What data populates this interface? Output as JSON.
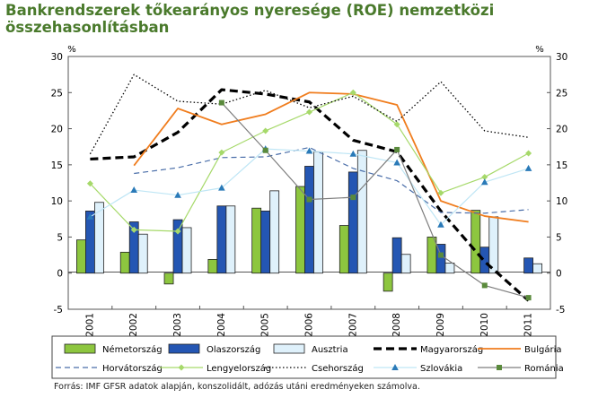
{
  "chart_data": {
    "type": "bar",
    "title": "Bankrendszerek tőkearányos nyeresége (ROE) nemzetközi összehasonlításban",
    "ylabel_left": "%",
    "ylabel_right": "%",
    "ylim": [
      -5,
      30
    ],
    "yticks": [
      "30",
      "25",
      "20",
      "15",
      "10",
      "5",
      "0",
      "-5"
    ],
    "grid": false,
    "legend_position": "bottom",
    "categories": [
      "2001",
      "2002",
      "2003",
      "2004",
      "2005",
      "2006",
      "2007",
      "2008",
      "2009",
      "2010",
      "2011"
    ],
    "series": [
      {
        "name": "Németország",
        "type": "bar",
        "color": "#8dc63f",
        "values": [
          4.6,
          2.9,
          -1.5,
          1.9,
          9.0,
          12.0,
          6.6,
          -2.5,
          5.0,
          8.7,
          null
        ]
      },
      {
        "name": "Olaszország",
        "type": "bar",
        "color": "#2456b3",
        "values": [
          8.6,
          7.1,
          7.4,
          9.3,
          8.6,
          14.8,
          14.0,
          4.9,
          4.0,
          3.6,
          2.1
        ]
      },
      {
        "name": "Ausztria",
        "type": "bar",
        "color": "#dff1fb",
        "values": [
          9.8,
          5.4,
          6.3,
          9.3,
          11.4,
          16.8,
          17.0,
          2.6,
          1.4,
          7.8,
          1.3
        ]
      },
      {
        "name": "Magyarország",
        "type": "line",
        "style": "thick-dashed",
        "color": "#000000",
        "values": [
          15.8,
          16.1,
          19.5,
          25.4,
          24.8,
          23.7,
          18.4,
          16.8,
          8.6,
          1.6,
          -3.8
        ]
      },
      {
        "name": "Bulgária",
        "type": "line",
        "style": "solid",
        "color": "#f07d1e",
        "values": [
          null,
          14.9,
          22.8,
          20.6,
          22.0,
          25.0,
          24.8,
          23.3,
          10.0,
          7.9,
          7.1
        ]
      },
      {
        "name": "Horvátország",
        "type": "line",
        "style": "dashed",
        "color": "#4a6ea9",
        "values": [
          null,
          13.8,
          14.6,
          16.0,
          16.1,
          17.4,
          14.5,
          12.8,
          8.4,
          8.3,
          8.8
        ]
      },
      {
        "name": "Lengyelország",
        "type": "line",
        "style": "solid-diamond",
        "color": "#a6d96a",
        "values": [
          12.4,
          6.0,
          5.8,
          16.7,
          19.7,
          22.3,
          25.0,
          20.6,
          11.1,
          13.3,
          16.6
        ]
      },
      {
        "name": "Csehország",
        "type": "line",
        "style": "dotted",
        "color": "#000000",
        "values": [
          16.5,
          27.5,
          23.8,
          23.4,
          25.3,
          22.9,
          24.5,
          21.0,
          26.5,
          19.7,
          18.8
        ]
      },
      {
        "name": "Szlovákia",
        "type": "line",
        "style": "solid-triangle",
        "color": "#bfe6f5",
        "marker_color": "#2a7ab8",
        "values": [
          7.8,
          11.5,
          10.8,
          11.8,
          17.2,
          16.9,
          16.5,
          15.3,
          6.7,
          12.6,
          14.5
        ]
      },
      {
        "name": "Románia",
        "type": "line",
        "style": "solid-square",
        "color": "#7d7d7d",
        "marker_color": "#5a8a3c",
        "values": [
          null,
          null,
          null,
          23.6,
          17.0,
          10.2,
          10.5,
          17.1,
          2.5,
          -1.7,
          -3.4
        ]
      }
    ],
    "source": "Forrás: IMF GFSR adatok alapján, konszolidált, adózás utáni eredményeken számolva."
  }
}
